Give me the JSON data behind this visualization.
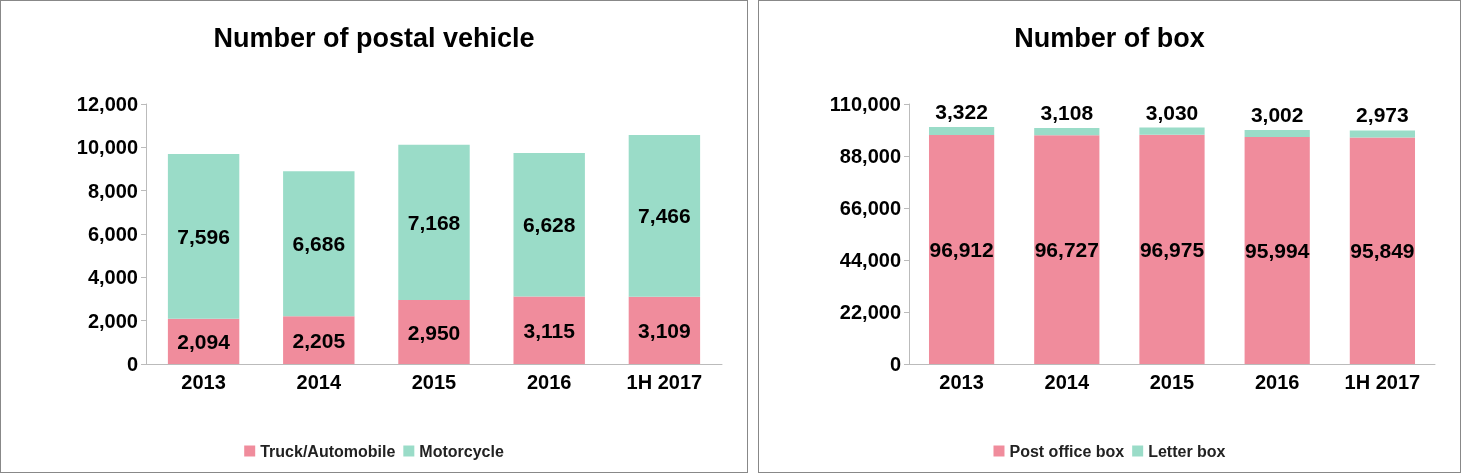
{
  "chart_data": [
    {
      "type": "bar",
      "title": "Number of postal vehicle",
      "categories": [
        "2013",
        "2014",
        "2015",
        "2016",
        "1H 2017"
      ],
      "stacked": true,
      "legend": "bottom",
      "grid": false,
      "ylim": [
        0,
        12000
      ],
      "yticks": [
        {
          "value": 0,
          "label": "0"
        },
        {
          "value": 2000,
          "label": "2,000"
        },
        {
          "value": 4000,
          "label": "4,000"
        },
        {
          "value": 6000,
          "label": "6,000"
        },
        {
          "value": 8000,
          "label": "8,000"
        },
        {
          "value": 10000,
          "label": "10,000"
        },
        {
          "value": 12000,
          "label": "12,000"
        }
      ],
      "series": [
        {
          "name": "Truck/Automobile",
          "color": "#f08c9c",
          "values": [
            2094,
            2205,
            2950,
            3115,
            3109
          ],
          "value_labels": [
            "2,094",
            "2,205",
            "2,950",
            "3,115",
            "3,109"
          ]
        },
        {
          "name": "Motorcycle",
          "color": "#9adcc8",
          "values": [
            7596,
            6686,
            7168,
            6628,
            7466
          ],
          "value_labels": [
            "7,596",
            "6,686",
            "7,168",
            "6,628",
            "7,466"
          ]
        }
      ]
    },
    {
      "type": "bar",
      "title": "Number of box",
      "categories": [
        "2013",
        "2014",
        "2015",
        "2016",
        "1H 2017"
      ],
      "stacked": true,
      "legend": "bottom",
      "grid": false,
      "ylim": [
        0,
        110000
      ],
      "yticks": [
        {
          "value": 0,
          "label": "0"
        },
        {
          "value": 22000,
          "label": "22,000"
        },
        {
          "value": 44000,
          "label": "44,000"
        },
        {
          "value": 66000,
          "label": "66,000"
        },
        {
          "value": 88000,
          "label": "88,000"
        },
        {
          "value": 110000,
          "label": "110,000"
        }
      ],
      "series": [
        {
          "name": "Post office box",
          "color": "#f08c9c",
          "values": [
            96912,
            96727,
            96975,
            95994,
            95849
          ],
          "value_labels": [
            "96,912",
            "96,727",
            "96,975",
            "95,994",
            "95,849"
          ]
        },
        {
          "name": "Letter box",
          "color": "#9adcc8",
          "values": [
            3322,
            3108,
            3030,
            3002,
            2973
          ],
          "value_labels": [
            "3,322",
            "3,108",
            "3,030",
            "3,002",
            "2,973"
          ]
        }
      ]
    }
  ]
}
